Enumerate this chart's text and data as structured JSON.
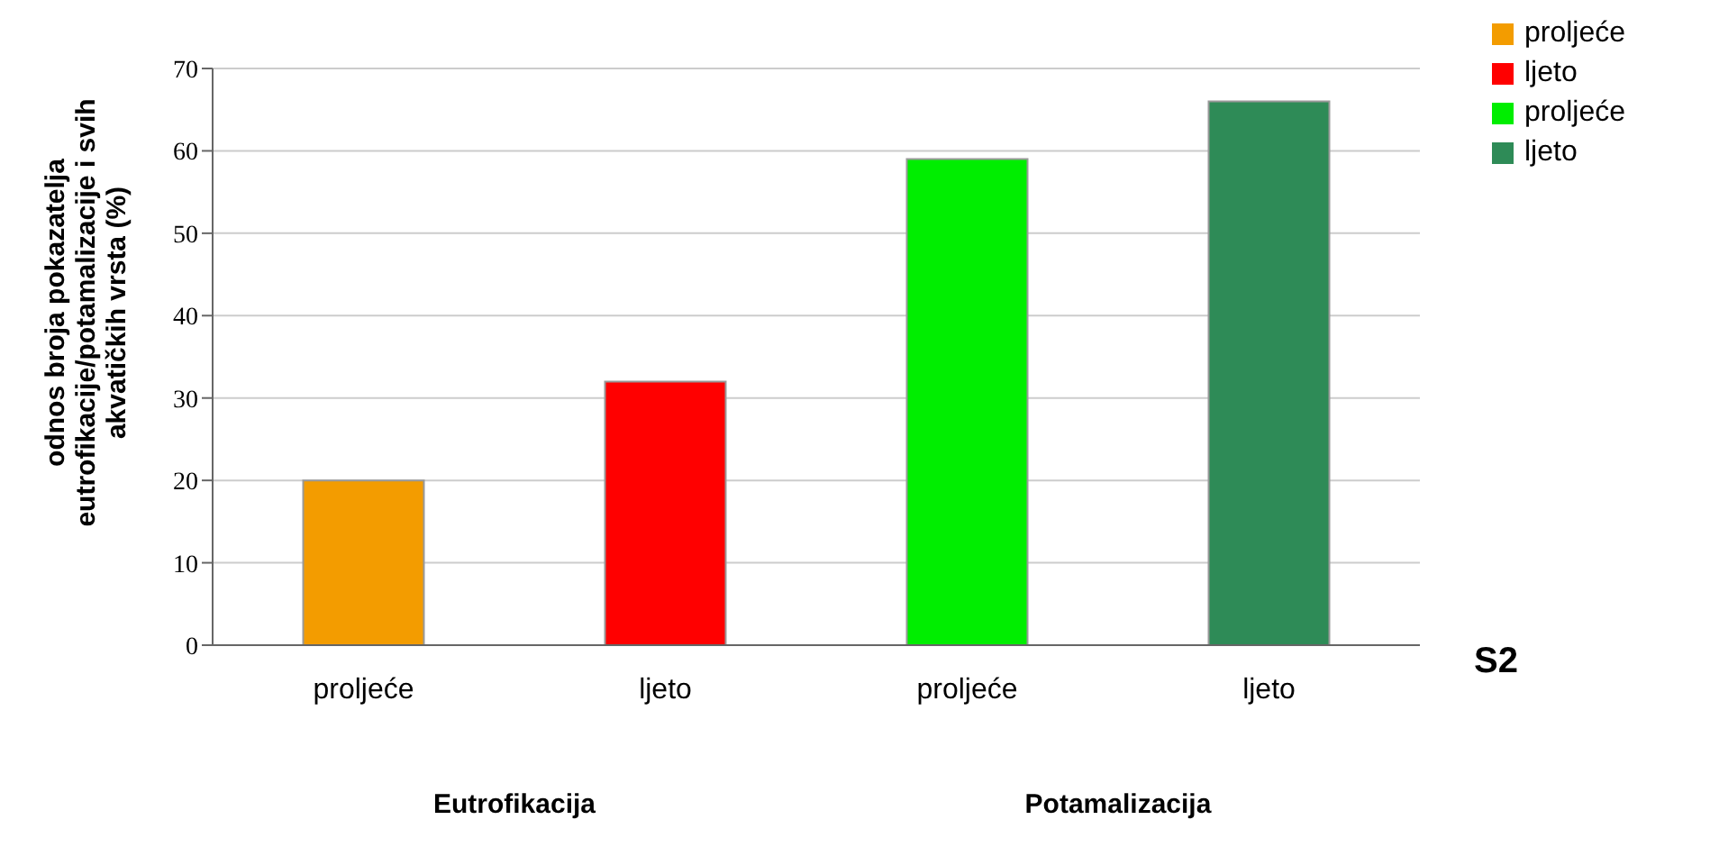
{
  "chart_data": {
    "type": "bar",
    "ylabel": "odnos broja pokazatelja eutrofikacije/potamalizacije i svih akvatičkih vrsta (%)",
    "categories": [
      "proljeće",
      "ljeto",
      "proljeće",
      "ljeto"
    ],
    "series": [
      {
        "name": "proljeće",
        "color": "#f39c00",
        "values": [
          20,
          null,
          null,
          null
        ]
      },
      {
        "name": "ljeto",
        "color": "#ff0000",
        "values": [
          null,
          32,
          null,
          null
        ]
      },
      {
        "name": "proljeće",
        "color": "#00ee00",
        "values": [
          null,
          null,
          59,
          null
        ]
      },
      {
        "name": "ljeto",
        "color": "#2e8b57",
        "values": [
          null,
          null,
          null,
          66
        ]
      }
    ],
    "stacked": true,
    "ylim": [
      0,
      70
    ],
    "yticks": [
      0,
      10,
      20,
      30,
      40,
      50,
      60,
      70
    ],
    "grid": "y",
    "legend": "top right",
    "annotations": [
      "Eutrofikacija",
      "Potamalizacija",
      "S2"
    ]
  }
}
